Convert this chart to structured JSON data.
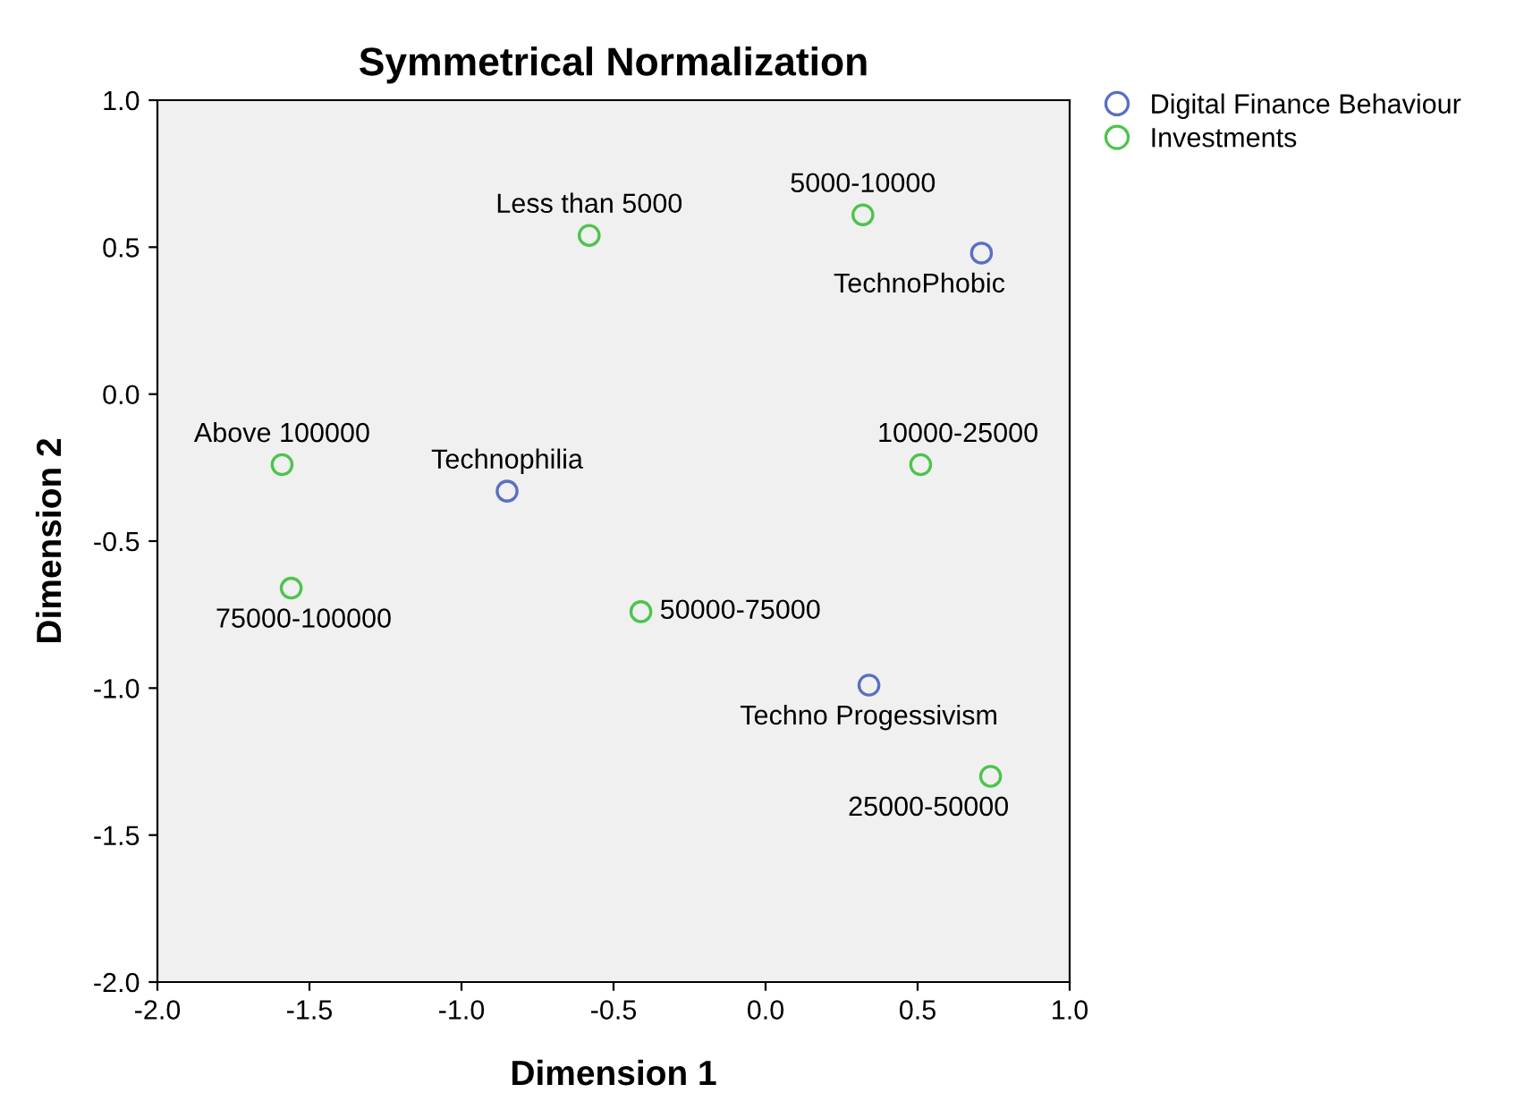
{
  "chart_data": {
    "type": "scatter",
    "title": "Symmetrical Normalization",
    "xlabel": "Dimension 1",
    "ylabel": "Dimension 2",
    "series": [
      {
        "name": "Digital Finance Behaviour",
        "color": "#5b6fc2",
        "x": [
          0.71,
          -0.85,
          0.34
        ],
        "values": [
          0.48,
          -0.33,
          -0.99
        ]
      },
      {
        "name": "Investments",
        "color": "#4cc44c",
        "x": [
          -0.58,
          0.32,
          -1.59,
          0.51,
          -1.56,
          -0.41,
          0.74
        ],
        "values": [
          0.54,
          0.61,
          -0.24,
          -0.24,
          -0.66,
          -0.74,
          -1.3
        ]
      }
    ],
    "annotations": [
      {
        "text": "TechnoPhobic",
        "x": 0.71,
        "y": 0.48
      },
      {
        "text": "Technophilia",
        "x": -0.85,
        "y": -0.33
      },
      {
        "text": "Techno Progessivism",
        "x": 0.34,
        "y": -0.99
      },
      {
        "text": "Less than 5000",
        "x": -0.58,
        "y": 0.54
      },
      {
        "text": "5000-10000",
        "x": 0.32,
        "y": 0.61
      },
      {
        "text": "Above 100000",
        "x": -1.59,
        "y": -0.24
      },
      {
        "text": "10000-25000",
        "x": 0.51,
        "y": -0.24
      },
      {
        "text": "75000-100000",
        "x": -1.56,
        "y": -0.66
      },
      {
        "text": "50000-75000",
        "x": -0.41,
        "y": -0.74
      },
      {
        "text": "25000-50000",
        "x": 0.74,
        "y": -1.3
      }
    ],
    "xlim": [
      -2.0,
      1.0
    ],
    "ylim": [
      -2.0,
      1.0
    ],
    "xticks": [
      {
        "value": -2.0,
        "label": "-2.0"
      },
      -1.5,
      {
        "value": -1.0,
        "label": "-1.0"
      },
      -0.5,
      {
        "value": 0.0,
        "label": "0.0"
      },
      0.5,
      {
        "value": 1.0,
        "label": "1.0"
      }
    ],
    "yticks": [
      {
        "value": -2.0,
        "label": "-2.0"
      },
      -1.5,
      {
        "value": -1.0,
        "label": "-1.0"
      },
      -0.5,
      {
        "value": 0.0,
        "label": "0.0"
      },
      0.5,
      {
        "value": 1.0,
        "label": "1.0"
      }
    ],
    "legend": "top right",
    "marker": "circle",
    "grid": false
  }
}
